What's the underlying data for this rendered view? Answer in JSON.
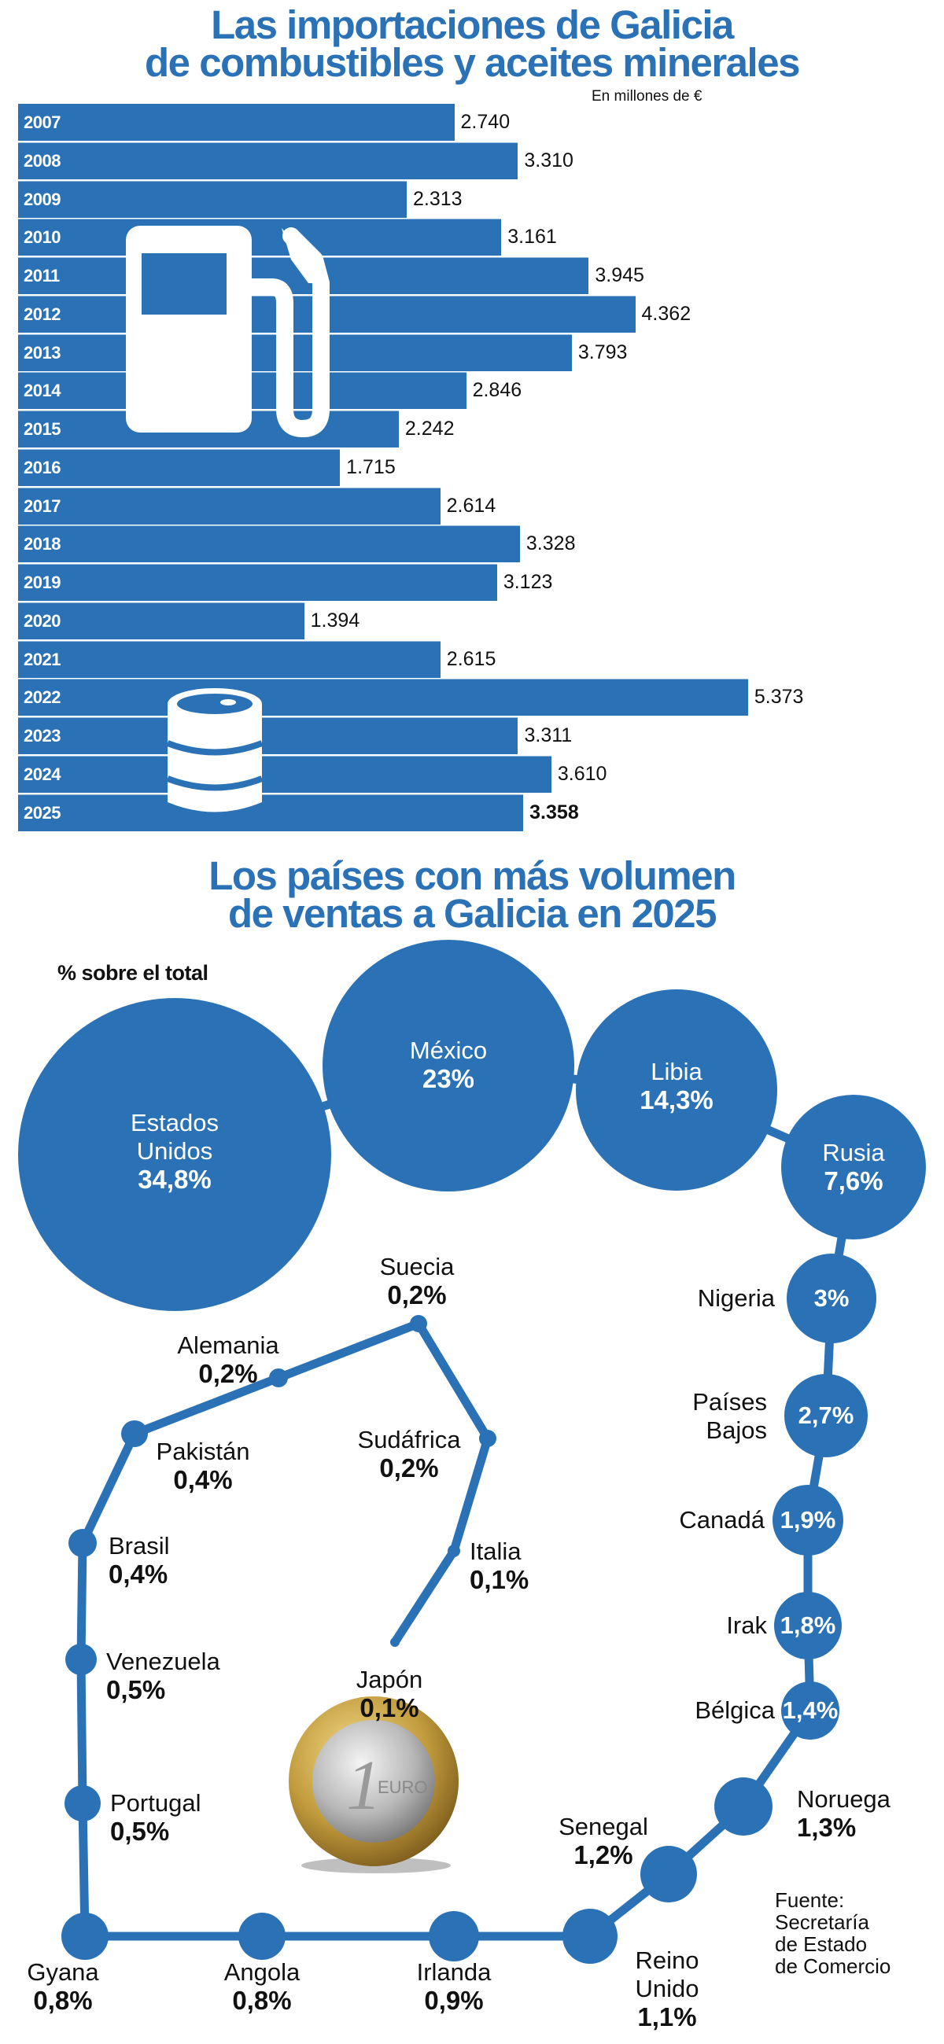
{
  "colors": {
    "brand_blue": "#2a72b5",
    "text": "#111111"
  },
  "chart_data": [
    {
      "type": "bar",
      "orientation": "horizontal",
      "title": "Las importaciones de Galicia de combustibles y aceites minerales",
      "title_lines": [
        "Las importaciones de Galicia",
        "de combustibles y aceites minerales"
      ],
      "unit_label": "En millones de €",
      "categories": [
        "2007",
        "2008",
        "2009",
        "2010",
        "2011",
        "2012",
        "2013",
        "2014",
        "2015",
        "2016",
        "2017",
        "2018",
        "2019",
        "2020",
        "2021",
        "2022",
        "2023",
        "2024",
        "2025"
      ],
      "values": [
        2740,
        3310,
        2313,
        3161,
        3945,
        4362,
        3793,
        2846,
        2242,
        1715,
        2614,
        3328,
        3123,
        1394,
        2615,
        5373,
        3311,
        3610,
        3358
      ],
      "value_labels": [
        "2.740",
        "3.310",
        "2.313",
        "3.161",
        "3.945",
        "4.362",
        "3.793",
        "2.846",
        "2.242",
        "1.715",
        "2.614",
        "3.328",
        "3.123",
        "1.394",
        "2.615",
        "5.373",
        "3.311",
        "3.610",
        "3.358"
      ],
      "highlight": "2025",
      "icons": [
        "fuel-pump-icon",
        "oil-barrel-icon"
      ]
    },
    {
      "type": "bubble",
      "title": "Los países con más volumen de ventas a Galicia en 2025",
      "title_lines": [
        "Los países con más volumen",
        "de ventas a Galicia en 2025"
      ],
      "measure_label": "% sobre el total",
      "countries": [
        {
          "name": "Estados Unidos",
          "pct": "34,8%",
          "value": 34.8
        },
        {
          "name": "México",
          "pct": "23%",
          "value": 23
        },
        {
          "name": "Libia",
          "pct": "14,3%",
          "value": 14.3
        },
        {
          "name": "Rusia",
          "pct": "7,6%",
          "value": 7.6
        },
        {
          "name": "Nigeria",
          "pct": "3%",
          "value": 3
        },
        {
          "name": "Países Bajos",
          "pct": "2,7%",
          "value": 2.7
        },
        {
          "name": "Canadá",
          "pct": "1,9%",
          "value": 1.9
        },
        {
          "name": "Irak",
          "pct": "1,8%",
          "value": 1.8
        },
        {
          "name": "Bélgica",
          "pct": "1,4%",
          "value": 1.4
        },
        {
          "name": "Noruega",
          "pct": "1,3%",
          "value": 1.3
        },
        {
          "name": "Senegal",
          "pct": "1,2%",
          "value": 1.2
        },
        {
          "name": "Reino Unido",
          "pct": "1,1%",
          "value": 1.1
        },
        {
          "name": "Irlanda",
          "pct": "0,9%",
          "value": 0.9
        },
        {
          "name": "Angola",
          "pct": "0,8%",
          "value": 0.8
        },
        {
          "name": "Gyana",
          "pct": "0,8%",
          "value": 0.8
        },
        {
          "name": "Portugal",
          "pct": "0,5%",
          "value": 0.5
        },
        {
          "name": "Venezuela",
          "pct": "0,5%",
          "value": 0.5
        },
        {
          "name": "Brasil",
          "pct": "0,4%",
          "value": 0.4
        },
        {
          "name": "Pakistán",
          "pct": "0,4%",
          "value": 0.4
        },
        {
          "name": "Alemania",
          "pct": "0,2%",
          "value": 0.2
        },
        {
          "name": "Suecia",
          "pct": "0,2%",
          "value": 0.2
        },
        {
          "name": "Sudáfrica",
          "pct": "0,2%",
          "value": 0.2
        },
        {
          "name": "Italia",
          "pct": "0,1%",
          "value": 0.1
        },
        {
          "name": "Japón",
          "pct": "0,1%",
          "value": 0.1
        }
      ],
      "decoration": "euro-coin-icon"
    }
  ],
  "source_lines": [
    "Fuente:",
    "Secretaría",
    "de Estado",
    "de Comercio"
  ]
}
